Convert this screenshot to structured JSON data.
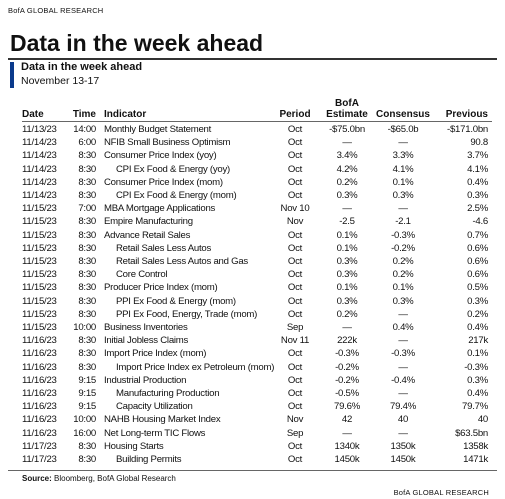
{
  "header": {
    "brand": "BofA GLOBAL RESEARCH",
    "title": "Data in the week ahead",
    "subtitle": "Data in the week ahead",
    "dates": "November 13-17"
  },
  "table": {
    "columns": [
      "Date",
      "Time",
      "Indicator",
      "Period",
      "BofA Estimate",
      "Consensus",
      "Previous"
    ],
    "rows": [
      {
        "cells": [
          "11/13/23",
          "14:00",
          "Monthly Budget Statement",
          "Oct",
          "-$75.0bn",
          "-$65.0b",
          "-$171.0bn"
        ]
      },
      {
        "cells": [
          "11/14/23",
          "6:00",
          "NFIB Small Business Optimism",
          "Oct",
          "—",
          "—",
          "90.8"
        ]
      },
      {
        "cells": [
          "11/14/23",
          "8:30",
          "Consumer Price Index (yoy)",
          "Oct",
          "3.4%",
          "3.3%",
          "3.7%"
        ]
      },
      {
        "cells": [
          "11/14/23",
          "8:30",
          "CPI Ex Food & Energy (yoy)",
          "Oct",
          "4.2%",
          "4.1%",
          "4.1%"
        ],
        "indent": true
      },
      {
        "cells": [
          "11/14/23",
          "8:30",
          "Consumer Price Index (mom)",
          "Oct",
          "0.2%",
          "0.1%",
          "0.4%"
        ]
      },
      {
        "cells": [
          "11/14/23",
          "8:30",
          "CPI Ex Food & Energy (mom)",
          "Oct",
          "0.3%",
          "0.3%",
          "0.3%"
        ],
        "indent": true
      },
      {
        "cells": [
          "11/15/23",
          "7:00",
          "MBA Mortgage Applications",
          "Nov 10",
          "—",
          "—",
          "2.5%"
        ]
      },
      {
        "cells": [
          "11/15/23",
          "8:30",
          "Empire Manufacturing",
          "Nov",
          "-2.5",
          "-2.1",
          "-4.6"
        ]
      },
      {
        "cells": [
          "11/15/23",
          "8:30",
          "Advance Retail Sales",
          "Oct",
          "0.1%",
          "-0.3%",
          "0.7%"
        ]
      },
      {
        "cells": [
          "11/15/23",
          "8:30",
          "Retail Sales Less Autos",
          "Oct",
          "0.1%",
          "-0.2%",
          "0.6%"
        ],
        "indent": true
      },
      {
        "cells": [
          "11/15/23",
          "8:30",
          "Retail Sales Less Autos and Gas",
          "Oct",
          "0.3%",
          "0.2%",
          "0.6%"
        ],
        "indent": true
      },
      {
        "cells": [
          "11/15/23",
          "8:30",
          "Core Control",
          "Oct",
          "0.3%",
          "0.2%",
          "0.6%"
        ],
        "indent": true
      },
      {
        "cells": [
          "11/15/23",
          "8:30",
          "Producer Price Index (mom)",
          "Oct",
          "0.1%",
          "0.1%",
          "0.5%"
        ]
      },
      {
        "cells": [
          "11/15/23",
          "8:30",
          "PPI Ex Food & Energy (mom)",
          "Oct",
          "0.3%",
          "0.3%",
          "0.3%"
        ],
        "indent": true
      },
      {
        "cells": [
          "11/15/23",
          "8:30",
          "PPI Ex Food, Energy, Trade (mom)",
          "Oct",
          "0.2%",
          "—",
          "0.2%"
        ],
        "indent": true
      },
      {
        "cells": [
          "11/15/23",
          "10:00",
          "Business Inventories",
          "Sep",
          "—",
          "0.4%",
          "0.4%"
        ]
      },
      {
        "cells": [
          "11/16/23",
          "8:30",
          "Initial Jobless Claims",
          "Nov 11",
          "222k",
          "—",
          "217k"
        ]
      },
      {
        "cells": [
          "11/16/23",
          "8:30",
          "Import Price Index (mom)",
          "Oct",
          "-0.3%",
          "-0.3%",
          "0.1%"
        ]
      },
      {
        "cells": [
          "11/16/23",
          "8:30",
          "Import Price Index ex Petroleum (mom)",
          "Oct",
          "-0.2%",
          "—",
          "-0.3%"
        ],
        "indent": true
      },
      {
        "cells": [
          "11/16/23",
          "9:15",
          "Industrial Production",
          "Oct",
          "-0.2%",
          "-0.4%",
          "0.3%"
        ]
      },
      {
        "cells": [
          "11/16/23",
          "9:15",
          "Manufacturing Production",
          "Oct",
          "-0.5%",
          "—",
          "0.4%"
        ],
        "indent": true
      },
      {
        "cells": [
          "11/16/23",
          "9:15",
          "Capacity Utilization",
          "Oct",
          "79.6%",
          "79.4%",
          "79.7%"
        ],
        "indent": true
      },
      {
        "cells": [
          "11/16/23",
          "10:00",
          "NAHB Housing Market Index",
          "Nov",
          "42",
          "40",
          "40"
        ]
      },
      {
        "cells": [
          "11/16/23",
          "16:00",
          "Net Long-term TIC Flows",
          "Sep",
          "—",
          "—",
          "$63.5bn"
        ]
      },
      {
        "cells": [
          "11/17/23",
          "8:30",
          "Housing Starts",
          "Oct",
          "1340k",
          "1350k",
          "1358k"
        ]
      },
      {
        "cells": [
          "11/17/23",
          "8:30",
          "Building Permits",
          "Oct",
          "1450k",
          "1450k",
          "1471k"
        ],
        "indent": true
      }
    ]
  },
  "footer": {
    "source_label": "Source:",
    "source": "Bloomberg, BofA Global Research",
    "brand": "BofA GLOBAL RESEARCH"
  }
}
